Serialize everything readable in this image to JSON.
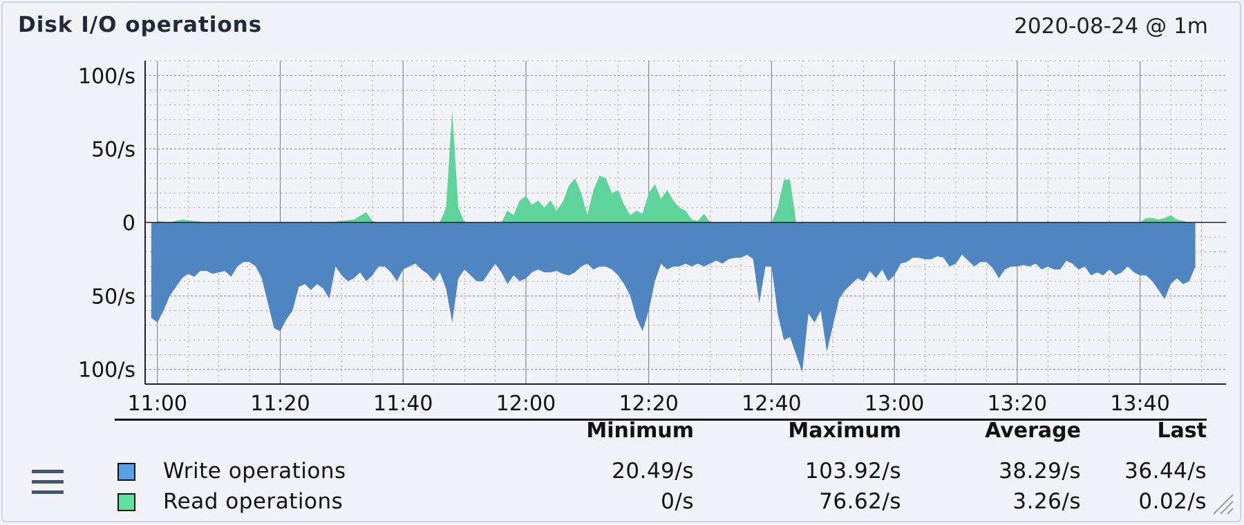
{
  "panel": {
    "title": "Disk I/O operations",
    "timerange": "2020-08-24 @ 1m"
  },
  "colors": {
    "write": "#4f86c2",
    "write_swatch": "#5a9ee3",
    "read": "#5ed39a",
    "read_swatch": "#5ee0a0",
    "grid": "#9aa0a8",
    "axis": "#222222"
  },
  "chart_data": {
    "type": "area",
    "title": "Disk I/O operations",
    "xlabel": "",
    "ylabel": "",
    "x_range": [
      "10:58",
      "13:54"
    ],
    "y_range": [
      -110,
      110
    ],
    "y_ticks": [
      100,
      50,
      0,
      -50,
      -100
    ],
    "y_tick_labels": [
      "100/s",
      "50/s",
      "0",
      "50/s",
      "100/s"
    ],
    "x_tick_labels": [
      "11:00",
      "11:20",
      "11:40",
      "12:00",
      "12:20",
      "12:40",
      "13:00",
      "13:20",
      "13:40"
    ],
    "grid": true,
    "legend_position": "bottom",
    "series": [
      {
        "name": "Read operations",
        "direction": "up",
        "points": [
          [
            "11:00",
            1
          ],
          [
            "11:02",
            0
          ],
          [
            "11:04",
            2
          ],
          [
            "11:06",
            1
          ],
          [
            "11:08",
            0
          ],
          [
            "11:28",
            0
          ],
          [
            "11:30",
            1
          ],
          [
            "11:32",
            2
          ],
          [
            "11:34",
            7
          ],
          [
            "11:35",
            1
          ],
          [
            "11:36",
            0
          ],
          [
            "11:46",
            0
          ],
          [
            "11:47",
            10
          ],
          [
            "11:48",
            76
          ],
          [
            "11:49",
            10
          ],
          [
            "11:50",
            0
          ],
          [
            "11:56",
            0
          ],
          [
            "11:57",
            8
          ],
          [
            "11:58",
            5
          ],
          [
            "11:59",
            15
          ],
          [
            "12:00",
            18
          ],
          [
            "12:01",
            12
          ],
          [
            "12:02",
            15
          ],
          [
            "12:03",
            10
          ],
          [
            "12:04",
            15
          ],
          [
            "12:05",
            8
          ],
          [
            "12:06",
            14
          ],
          [
            "12:07",
            25
          ],
          [
            "12:08",
            30
          ],
          [
            "12:09",
            20
          ],
          [
            "12:10",
            5
          ],
          [
            "12:11",
            22
          ],
          [
            "12:12",
            32
          ],
          [
            "12:13",
            30
          ],
          [
            "12:14",
            20
          ],
          [
            "12:15",
            22
          ],
          [
            "12:16",
            12
          ],
          [
            "12:17",
            5
          ],
          [
            "12:18",
            8
          ],
          [
            "12:19",
            6
          ],
          [
            "12:20",
            20
          ],
          [
            "12:21",
            26
          ],
          [
            "12:22",
            16
          ],
          [
            "12:23",
            22
          ],
          [
            "12:24",
            15
          ],
          [
            "12:25",
            10
          ],
          [
            "12:26",
            8
          ],
          [
            "12:27",
            2
          ],
          [
            "12:28",
            1
          ],
          [
            "12:29",
            6
          ],
          [
            "12:30",
            0
          ],
          [
            "12:40",
            0
          ],
          [
            "12:41",
            10
          ],
          [
            "12:42",
            29
          ],
          [
            "12:43",
            29
          ],
          [
            "12:44",
            0
          ],
          [
            "13:40",
            0
          ],
          [
            "13:41",
            3
          ],
          [
            "13:42",
            3
          ],
          [
            "13:43",
            2
          ],
          [
            "13:44",
            3
          ],
          [
            "13:45",
            5
          ],
          [
            "13:46",
            2
          ],
          [
            "13:47",
            1
          ],
          [
            "13:48",
            0
          ]
        ]
      },
      {
        "name": "Write operations",
        "direction": "down",
        "points": [
          [
            "10:59",
            0
          ],
          [
            "10:59",
            65
          ],
          [
            "11:00",
            68
          ],
          [
            "11:01",
            60
          ],
          [
            "11:02",
            50
          ],
          [
            "11:03",
            44
          ],
          [
            "11:04",
            38
          ],
          [
            "11:05",
            35
          ],
          [
            "11:06",
            37
          ],
          [
            "11:07",
            33
          ],
          [
            "11:08",
            33
          ],
          [
            "11:09",
            35
          ],
          [
            "11:10",
            34
          ],
          [
            "11:11",
            33
          ],
          [
            "11:12",
            37
          ],
          [
            "11:13",
            30
          ],
          [
            "11:14",
            27
          ],
          [
            "11:15",
            27
          ],
          [
            "11:16",
            30
          ],
          [
            "11:17",
            38
          ],
          [
            "11:18",
            55
          ],
          [
            "11:19",
            72
          ],
          [
            "11:20",
            74
          ],
          [
            "11:21",
            66
          ],
          [
            "11:22",
            60
          ],
          [
            "11:23",
            44
          ],
          [
            "11:24",
            42
          ],
          [
            "11:25",
            46
          ],
          [
            "11:26",
            42
          ],
          [
            "11:27",
            45
          ],
          [
            "11:28",
            52
          ],
          [
            "11:29",
            30
          ],
          [
            "11:30",
            36
          ],
          [
            "11:31",
            40
          ],
          [
            "11:32",
            38
          ],
          [
            "11:33",
            34
          ],
          [
            "11:34",
            40
          ],
          [
            "11:35",
            36
          ],
          [
            "11:36",
            30
          ],
          [
            "11:37",
            30
          ],
          [
            "11:38",
            34
          ],
          [
            "11:39",
            40
          ],
          [
            "11:40",
            32
          ],
          [
            "11:41",
            30
          ],
          [
            "11:42",
            28
          ],
          [
            "11:43",
            32
          ],
          [
            "11:44",
            35
          ],
          [
            "11:45",
            40
          ],
          [
            "11:46",
            34
          ],
          [
            "11:47",
            45
          ],
          [
            "11:48",
            68
          ],
          [
            "11:49",
            38
          ],
          [
            "11:50",
            32
          ],
          [
            "11:51",
            36
          ],
          [
            "11:52",
            40
          ],
          [
            "11:53",
            40
          ],
          [
            "11:54",
            34
          ],
          [
            "11:55",
            28
          ],
          [
            "11:56",
            34
          ],
          [
            "11:57",
            42
          ],
          [
            "11:58",
            36
          ],
          [
            "11:59",
            40
          ],
          [
            "12:00",
            38
          ],
          [
            "12:01",
            34
          ],
          [
            "12:02",
            32
          ],
          [
            "12:03",
            34
          ],
          [
            "12:04",
            34
          ],
          [
            "12:05",
            33
          ],
          [
            "12:06",
            35
          ],
          [
            "12:07",
            36
          ],
          [
            "12:08",
            34
          ],
          [
            "12:09",
            30
          ],
          [
            "12:10",
            28
          ],
          [
            "12:11",
            32
          ],
          [
            "12:12",
            30
          ],
          [
            "12:13",
            30
          ],
          [
            "12:14",
            32
          ],
          [
            "12:15",
            36
          ],
          [
            "12:16",
            42
          ],
          [
            "12:17",
            50
          ],
          [
            "12:18",
            65
          ],
          [
            "12:19",
            74
          ],
          [
            "12:20",
            60
          ],
          [
            "12:21",
            40
          ],
          [
            "12:22",
            28
          ],
          [
            "12:23",
            32
          ],
          [
            "12:24",
            30
          ],
          [
            "12:25",
            30
          ],
          [
            "12:26",
            28
          ],
          [
            "12:27",
            30
          ],
          [
            "12:28",
            28
          ],
          [
            "12:29",
            30
          ],
          [
            "12:30",
            28
          ],
          [
            "12:31",
            26
          ],
          [
            "12:32",
            28
          ],
          [
            "12:33",
            25
          ],
          [
            "12:34",
            24
          ],
          [
            "12:35",
            24
          ],
          [
            "12:36",
            22
          ],
          [
            "12:37",
            25
          ],
          [
            "12:38",
            55
          ],
          [
            "12:39",
            30
          ],
          [
            "12:40",
            30
          ],
          [
            "12:41",
            62
          ],
          [
            "12:42",
            80
          ],
          [
            "12:43",
            78
          ],
          [
            "12:44",
            90
          ],
          [
            "12:45",
            102
          ],
          [
            "12:46",
            62
          ],
          [
            "12:47",
            68
          ],
          [
            "12:48",
            60
          ],
          [
            "12:49",
            88
          ],
          [
            "12:50",
            70
          ],
          [
            "12:51",
            52
          ],
          [
            "12:52",
            46
          ],
          [
            "12:53",
            42
          ],
          [
            "12:54",
            38
          ],
          [
            "12:55",
            40
          ],
          [
            "12:56",
            33
          ],
          [
            "12:57",
            38
          ],
          [
            "12:58",
            32
          ],
          [
            "12:59",
            40
          ],
          [
            "13:00",
            36
          ],
          [
            "13:01",
            28
          ],
          [
            "13:02",
            27
          ],
          [
            "13:03",
            24
          ],
          [
            "13:04",
            24
          ],
          [
            "13:05",
            25
          ],
          [
            "13:06",
            25
          ],
          [
            "13:07",
            23
          ],
          [
            "13:08",
            24
          ],
          [
            "13:09",
            30
          ],
          [
            "13:10",
            28
          ],
          [
            "13:11",
            22
          ],
          [
            "13:12",
            26
          ],
          [
            "13:13",
            30
          ],
          [
            "13:14",
            27
          ],
          [
            "13:15",
            27
          ],
          [
            "13:16",
            31
          ],
          [
            "13:17",
            38
          ],
          [
            "13:18",
            32
          ],
          [
            "13:19",
            30
          ],
          [
            "13:20",
            30
          ],
          [
            "13:21",
            29
          ],
          [
            "13:22",
            30
          ],
          [
            "13:23",
            28
          ],
          [
            "13:24",
            32
          ],
          [
            "13:25",
            30
          ],
          [
            "13:26",
            32
          ],
          [
            "13:27",
            32
          ],
          [
            "13:28",
            26
          ],
          [
            "13:29",
            28
          ],
          [
            "13:30",
            32
          ],
          [
            "13:31",
            30
          ],
          [
            "13:32",
            36
          ],
          [
            "13:33",
            34
          ],
          [
            "13:34",
            36
          ],
          [
            "13:35",
            32
          ],
          [
            "13:36",
            36
          ],
          [
            "13:37",
            34
          ],
          [
            "13:38",
            30
          ],
          [
            "13:39",
            34
          ],
          [
            "13:40",
            36
          ],
          [
            "13:41",
            36
          ],
          [
            "13:42",
            40
          ],
          [
            "13:43",
            46
          ],
          [
            "13:44",
            52
          ],
          [
            "13:45",
            42
          ],
          [
            "13:46",
            38
          ],
          [
            "13:47",
            42
          ],
          [
            "13:48",
            40
          ],
          [
            "13:49",
            30
          ],
          [
            "13:49",
            0
          ]
        ]
      }
    ]
  },
  "legend": {
    "headers": {
      "min": "Minimum",
      "max": "Maximum",
      "avg": "Average",
      "last": "Last"
    },
    "rows": [
      {
        "name": "Write operations",
        "min": "20.49/s",
        "max": "103.92/s",
        "avg": "38.29/s",
        "last": "36.44/s"
      },
      {
        "name": "Read operations",
        "min": "0/s",
        "max": "76.62/s",
        "avg": "3.26/s",
        "last": "0.02/s"
      }
    ]
  }
}
